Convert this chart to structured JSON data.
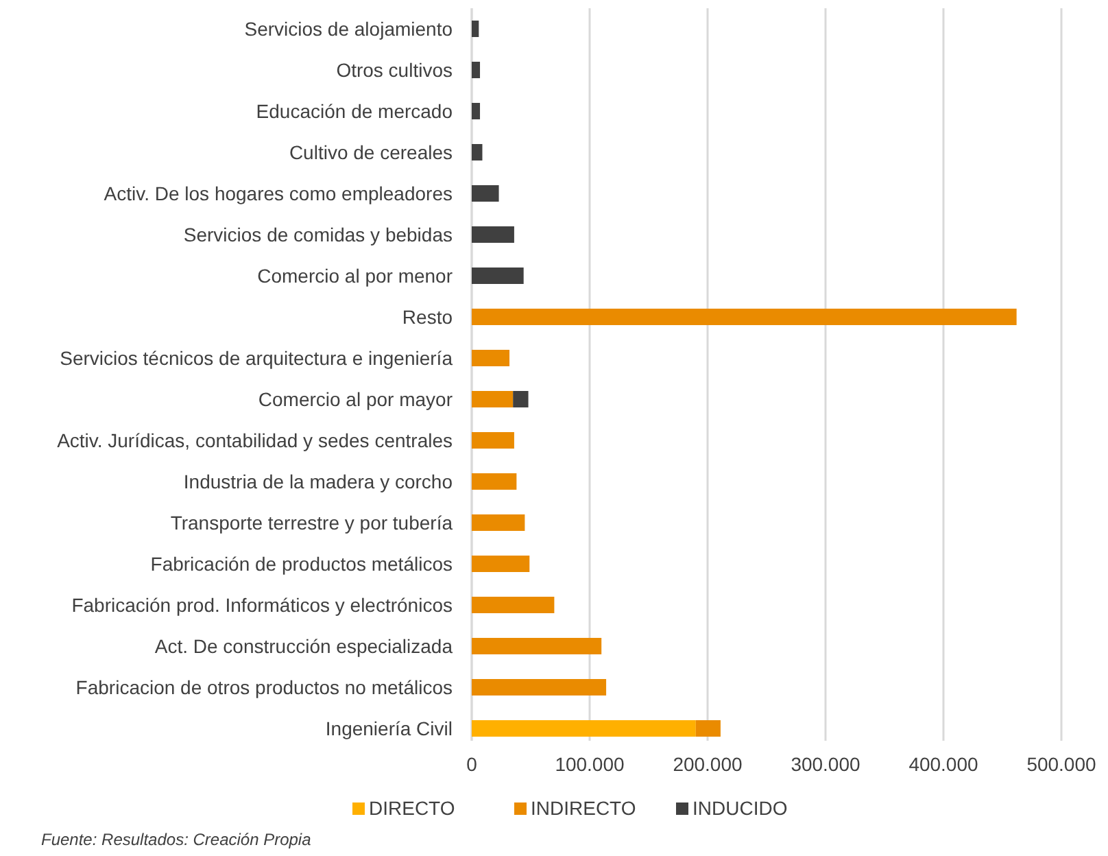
{
  "chart_data": {
    "type": "bar",
    "orientation": "horizontal",
    "stacked": true,
    "categories": [
      "Servicios de alojamiento",
      "Otros cultivos",
      "Educación de mercado",
      "Cultivo de cereales",
      "Activ. De los hogares como empleadores",
      "Servicios de comidas y bebidas",
      "Comercio al por menor",
      "Resto",
      "Servicios técnicos de arquitectura e ingeniería",
      "Comercio al por mayor",
      "Activ. Jurídicas, contabilidad y sedes centrales",
      "Industria de la madera y corcho",
      "Transporte terrestre y por tubería",
      "Fabricación de productos metálicos",
      "Fabricación prod. Informáticos y electrónicos",
      "Act. De construcción especializada",
      "Fabricacion de otros productos no metálicos",
      "Ingeniería Civil"
    ],
    "series": [
      {
        "name": "DIRECTO",
        "color": "#ffb000",
        "values": [
          null,
          null,
          null,
          null,
          null,
          null,
          null,
          null,
          null,
          null,
          null,
          null,
          null,
          null,
          null,
          null,
          null,
          190000
        ]
      },
      {
        "name": "INDIRECTO",
        "color": "#ea8b00",
        "values": [
          null,
          null,
          null,
          null,
          null,
          null,
          null,
          462000,
          32000,
          35000,
          36000,
          38000,
          45000,
          49000,
          70000,
          110000,
          114000,
          21000
        ]
      },
      {
        "name": "INDUCIDO",
        "color": "#404040",
        "values": [
          6000,
          7000,
          7000,
          9000,
          23000,
          36000,
          44000,
          null,
          null,
          13000,
          null,
          null,
          null,
          null,
          null,
          null,
          null,
          null
        ]
      }
    ],
    "xlim": [
      0,
      500000
    ],
    "xticks": [
      0,
      {
        "value": 100000,
        "label": "100.000"
      },
      {
        "value": 200000,
        "label": "200.000"
      },
      {
        "value": 300000,
        "label": "300.000"
      },
      {
        "value": 400000,
        "label": "400.000"
      },
      {
        "value": 500000,
        "label": "500.000"
      }
    ],
    "grid": "x",
    "legend": "bottom",
    "annotations": [
      "Fuente: Resultados: Creación Propia"
    ]
  }
}
